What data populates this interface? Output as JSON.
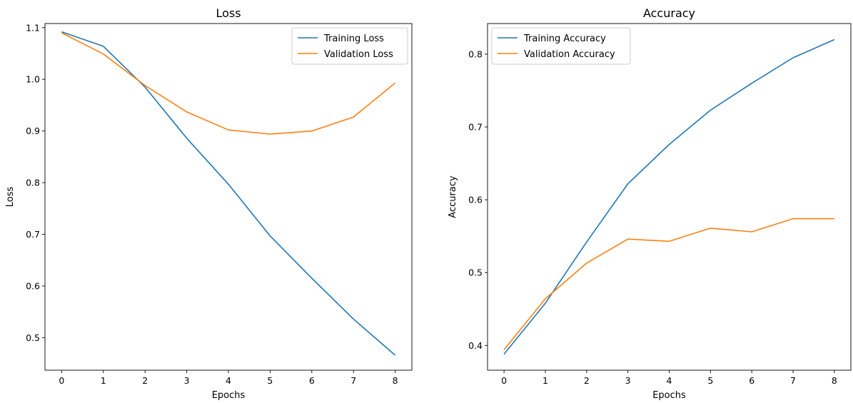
{
  "chart_data": [
    {
      "type": "line",
      "title": "Loss",
      "xlabel": "Epochs",
      "ylabel": "Loss",
      "x": [
        0,
        1,
        2,
        3,
        4,
        5,
        6,
        7,
        8
      ],
      "xlim": [
        -0.4,
        8.4
      ],
      "ylim": [
        0.437,
        1.108
      ],
      "xticks": [
        0,
        1,
        2,
        3,
        4,
        5,
        6,
        7,
        8
      ],
      "yticks": [
        0.5,
        0.6,
        0.7,
        0.8,
        0.9,
        1.0,
        1.1
      ],
      "ytick_labels": [
        "0.5",
        "0.6",
        "0.7",
        "0.8",
        "0.9",
        "1.0",
        "1.1"
      ],
      "grid": false,
      "legend_position": "top-right",
      "series": [
        {
          "name": "Training Loss",
          "color": "#1f77b4",
          "values": [
            1.092,
            1.064,
            0.985,
            0.886,
            0.797,
            0.697,
            0.615,
            0.536,
            0.466
          ]
        },
        {
          "name": "Validation Loss",
          "color": "#ff7f0e",
          "values": [
            1.09,
            1.049,
            0.988,
            0.937,
            0.902,
            0.894,
            0.9,
            0.927,
            0.993
          ]
        }
      ]
    },
    {
      "type": "line",
      "title": "Accuracy",
      "xlabel": "Epochs",
      "ylabel": "Accuracy",
      "x": [
        0,
        1,
        2,
        3,
        4,
        5,
        6,
        7,
        8
      ],
      "xlim": [
        -0.4,
        8.4
      ],
      "ylim": [
        0.366,
        0.842
      ],
      "xticks": [
        0,
        1,
        2,
        3,
        4,
        5,
        6,
        7,
        8
      ],
      "yticks": [
        0.4,
        0.5,
        0.6,
        0.7,
        0.8
      ],
      "ytick_labels": [
        "0.4",
        "0.5",
        "0.6",
        "0.7",
        "0.8"
      ],
      "grid": false,
      "legend_position": "top-left",
      "series": [
        {
          "name": "Training Accuracy",
          "color": "#1f77b4",
          "values": [
            0.388,
            0.458,
            0.542,
            0.622,
            0.676,
            0.723,
            0.76,
            0.795,
            0.82
          ]
        },
        {
          "name": "Validation Accuracy",
          "color": "#ff7f0e",
          "values": [
            0.394,
            0.464,
            0.513,
            0.546,
            0.543,
            0.561,
            0.556,
            0.574,
            0.574
          ]
        }
      ]
    }
  ]
}
